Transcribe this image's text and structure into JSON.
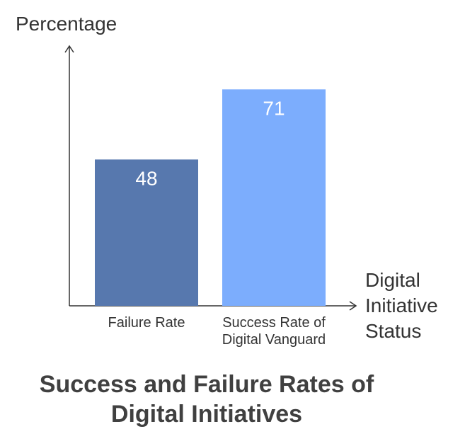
{
  "chart_data": {
    "type": "bar",
    "title_lines": [
      "Success and Failure Rates of",
      "Digital Initiatives"
    ],
    "ylabel": "Percentage",
    "xlabel_lines": [
      "Digital",
      "Initiative",
      "Status"
    ],
    "categories": [
      [
        "Failure Rate"
      ],
      [
        "Success Rate of",
        "Digital Vanguard"
      ]
    ],
    "values": [
      48,
      71
    ],
    "value_labels": [
      "48",
      "71"
    ],
    "colors": [
      "#5778AE",
      "#7CADFD"
    ],
    "ylim": [
      0,
      85
    ],
    "grid": false
  }
}
